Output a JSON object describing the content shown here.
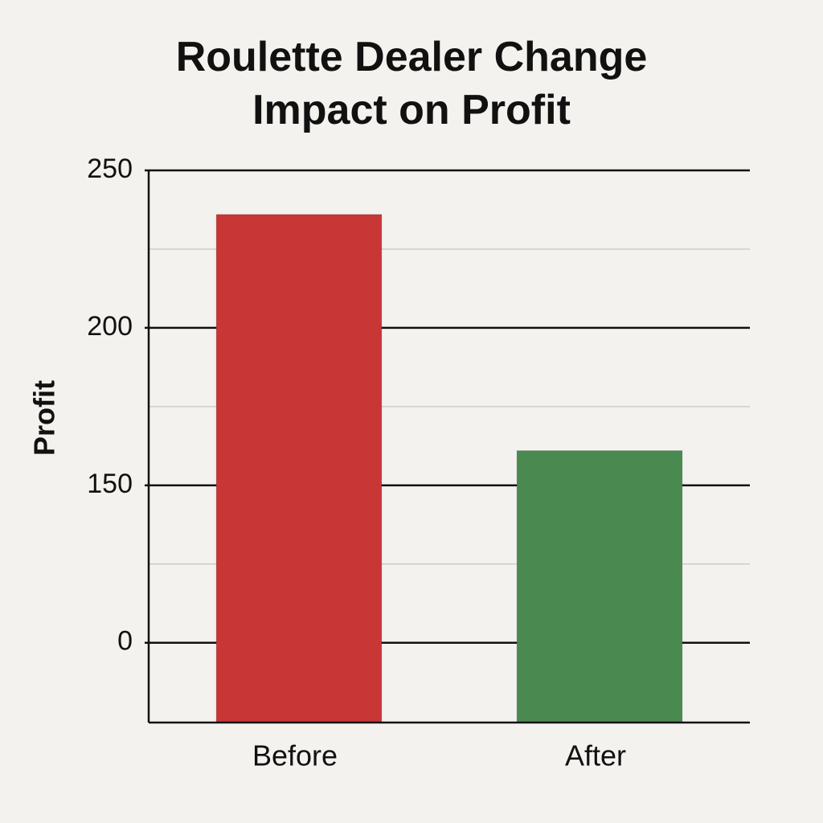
{
  "chart_data": {
    "type": "bar",
    "title": "Roulette Dealer Change Impact on Profit",
    "y_label": "Profit",
    "categories": [
      "Before",
      "After"
    ],
    "values": [
      236,
      161
    ],
    "colors": [
      "#c93636",
      "#4a8a50"
    ],
    "ylim": [
      -76,
      250
    ],
    "yticks": [
      0,
      150,
      200,
      250
    ],
    "grid": true
  }
}
